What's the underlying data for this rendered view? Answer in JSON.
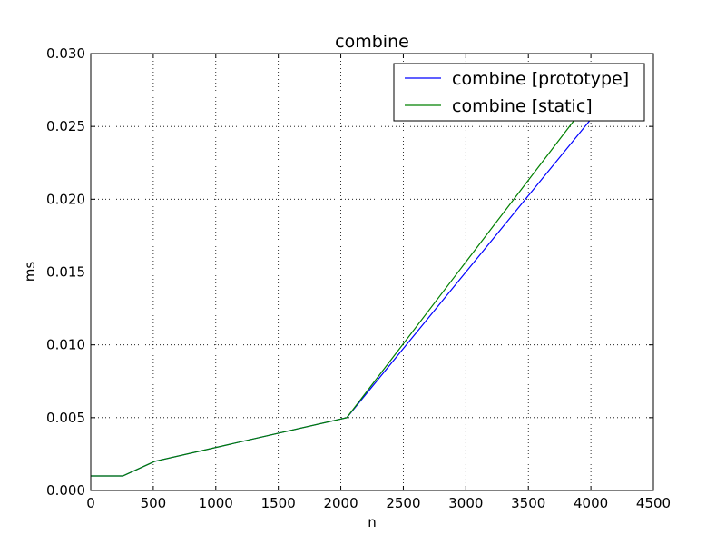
{
  "chart_data": {
    "type": "line",
    "title": "combine",
    "xlabel": "n",
    "ylabel": "ms",
    "xlim": [
      0,
      4500
    ],
    "ylim": [
      0,
      0.03
    ],
    "xticks": [
      0,
      500,
      1000,
      1500,
      2000,
      2500,
      3000,
      3500,
      4000,
      4500
    ],
    "xtick_labels": [
      "0",
      "500",
      "1000",
      "1500",
      "2000",
      "2500",
      "3000",
      "3500",
      "4000",
      "4500"
    ],
    "yticks": [
      0,
      0.005,
      0.01,
      0.015,
      0.02,
      0.025,
      0.03
    ],
    "ytick_labels": [
      "0.000",
      "0.005",
      "0.010",
      "0.015",
      "0.020",
      "0.025",
      "0.030"
    ],
    "grid": true,
    "legend_position": "top-right",
    "x": [
      0,
      256,
      512,
      2048,
      4096
    ],
    "series": [
      {
        "name": "combine [prototype]",
        "color": "#0000ff",
        "values": [
          0.001,
          0.001,
          0.002,
          0.005,
          0.0265
        ]
      },
      {
        "name": "combine [static]",
        "color": "#008000",
        "values": [
          0.001,
          0.001,
          0.002,
          0.005,
          0.028
        ]
      }
    ]
  }
}
